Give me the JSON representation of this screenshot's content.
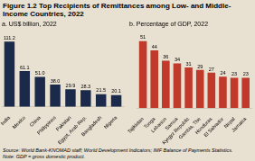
{
  "title": "Figure 1.2 Top Recipients of Remittances among Low- and Middle-Income Countries, 2022",
  "annotations": [
    "Source: World Bank-KNOMAD staff; World Development Indicators; IMF Balance of Payments Statistics.",
    "Note: GDP = gross domestic product."
  ],
  "chart_data": [
    {
      "type": "bar",
      "subtitle": "a. US$ billion, 2022",
      "categories": [
        "India",
        "Mexico",
        "China",
        "Philippines",
        "Pakistan",
        "Egypt, Arab Rep.",
        "Bangladesh",
        "Nigeria"
      ],
      "values": [
        111.2,
        61.1,
        51.0,
        38.0,
        29.9,
        28.3,
        21.5,
        20.1
      ],
      "value_labels": [
        "111.2",
        "61.1",
        "51.0",
        "38.0",
        "29.9",
        "28.3",
        "21.5",
        "20.1"
      ],
      "color": "#1b2a4a",
      "ylim": [
        0,
        128
      ],
      "grid": false,
      "tick_labels": "x",
      "data_labels": true
    },
    {
      "type": "bar",
      "subtitle": "b. Percentage of GDP, 2022",
      "categories": [
        "Tajikistan",
        "Tonga",
        "Lebanon",
        "Samoa",
        "Kyrgyz Republic",
        "Gambia, The",
        "Honduras",
        "El Salvador",
        "Nepal",
        "Jamaica"
      ],
      "values": [
        51,
        44,
        36,
        34,
        31,
        29,
        27,
        24,
        23,
        23
      ],
      "color": "#c0392b",
      "ylim": [
        0,
        58
      ],
      "grid": false,
      "tick_labels": "x",
      "data_labels": true
    }
  ]
}
